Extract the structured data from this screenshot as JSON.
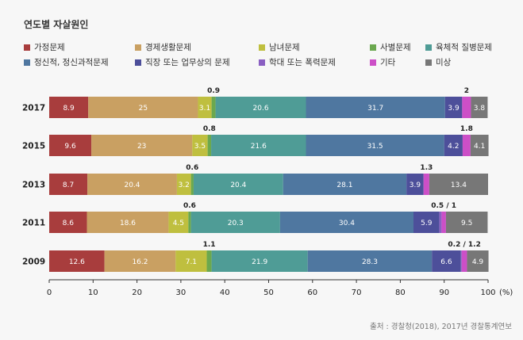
{
  "chart_data": {
    "type": "bar",
    "orientation": "horizontal",
    "stacked": true,
    "title": "연도별 자살원인",
    "categories": [
      "2017",
      "2015",
      "2013",
      "2011",
      "2009"
    ],
    "xlim": [
      0,
      100
    ],
    "xticks": [
      "0",
      "10",
      "20",
      "30",
      "40",
      "50",
      "60",
      "70",
      "80",
      "90",
      "100"
    ],
    "x_unit": "(%)",
    "grid": false,
    "legend_position": "top",
    "series": [
      {
        "name": "가정문제",
        "color": "#a83d3d",
        "values": [
          8.9,
          9.6,
          8.7,
          8.6,
          12.6
        ]
      },
      {
        "name": "경제생활문제",
        "color": "#c9a062",
        "values": [
          25,
          23,
          20.4,
          18.6,
          16.2
        ]
      },
      {
        "name": "남녀문제",
        "color": "#bfbf3f",
        "values": [
          3.1,
          3.5,
          3.2,
          4.5,
          7.1
        ]
      },
      {
        "name": "사별문제",
        "color": "#6ba84f",
        "values": [
          0.9,
          0.8,
          0.6,
          0.6,
          1.1
        ]
      },
      {
        "name": "육체적 질병문제",
        "color": "#4f9c96",
        "values": [
          20.6,
          21.6,
          20.4,
          20.3,
          21.9
        ]
      },
      {
        "name": "정신적, 정신과적문제",
        "color": "#4f77a0",
        "values": [
          31.7,
          31.5,
          28.1,
          30.4,
          28.3
        ]
      },
      {
        "name": "직장 또는 업무상의 문제",
        "color": "#4d4f9a",
        "values": [
          3.9,
          4.2,
          3.9,
          5.9,
          6.6
        ]
      },
      {
        "name": "학대 또는 폭력문제",
        "color": "#8a5fc2",
        "values": [
          null,
          null,
          null,
          0.5,
          0.2
        ]
      },
      {
        "name": "기타",
        "color": "#cc4fc7",
        "values": [
          2,
          1.8,
          1.3,
          1,
          1.2
        ]
      },
      {
        "name": "미상",
        "color": "#777777",
        "values": [
          3.8,
          4.1,
          13.4,
          9.5,
          4.9
        ]
      }
    ],
    "above_labels": [
      "0.9",
      "2",
      "0.8",
      "1.8",
      "0.6",
      "1.3",
      "0.6",
      "0.5 / 1",
      "1.1",
      "0.2 / 1.2"
    ]
  },
  "source": "출처 : 경찰청(2018), 2017년 경찰통계연보"
}
